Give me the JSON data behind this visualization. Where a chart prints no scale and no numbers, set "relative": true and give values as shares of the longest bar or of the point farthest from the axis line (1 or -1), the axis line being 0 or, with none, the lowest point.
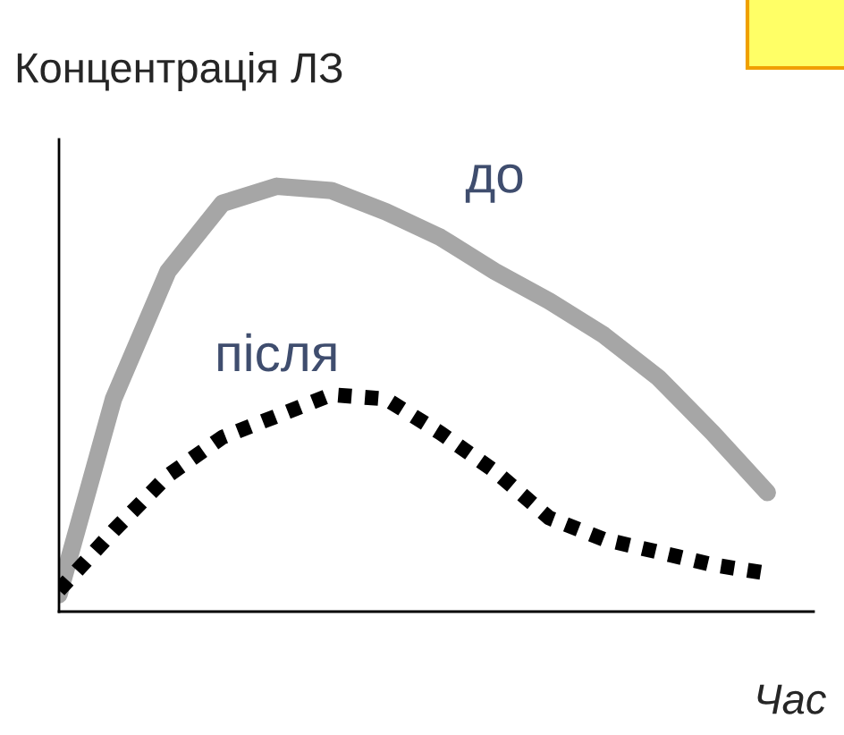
{
  "chart_data": {
    "type": "line",
    "relative": true,
    "ylabel": "Концентрація ЛЗ",
    "xlabel": "Час",
    "categories": [
      null,
      null,
      null,
      null,
      null,
      null,
      null,
      null,
      null,
      null,
      null,
      null,
      null,
      null
    ],
    "series": [
      {
        "name": "до",
        "color": "#a6a6a6",
        "line_style": "solid",
        "values": [
          0.04,
          0.5,
          0.8,
          0.96,
          1.0,
          0.99,
          0.94,
          0.88,
          0.8,
          0.73,
          0.65,
          0.55,
          0.42,
          0.28
        ]
      },
      {
        "name": "після",
        "color": "#000000",
        "line_style": "dotted",
        "values": [
          0.05,
          0.19,
          0.32,
          0.41,
          0.46,
          0.51,
          0.5,
          0.42,
          0.33,
          0.22,
          0.17,
          0.14,
          0.11,
          0.09
        ]
      }
    ],
    "legend": false,
    "grid": false,
    "marker": "none"
  }
}
